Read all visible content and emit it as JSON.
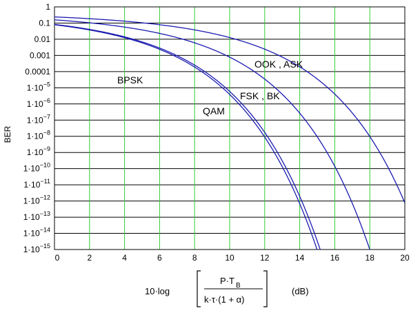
{
  "chart_data": {
    "type": "line",
    "title": "",
    "ylabel": "BER",
    "xlabel_formula": {
      "prefix": "10·log",
      "numerator_main": "P·T",
      "numerator_sub": "B",
      "denominator": "k·τ·(1 + α)",
      "unit": "(dB)"
    },
    "xlim": [
      0,
      20
    ],
    "ylim_log10": [
      -15,
      0
    ],
    "y_scale": "log",
    "grid": true,
    "x_ticks": [
      "0",
      "2",
      "4",
      "6",
      "8",
      "10",
      "12",
      "14",
      "16",
      "18",
      "20"
    ],
    "y_ticks": [
      {
        "base": "1",
        "exp": ""
      },
      {
        "base": "0.1",
        "exp": ""
      },
      {
        "base": "0.01",
        "exp": ""
      },
      {
        "base": "0.001",
        "exp": ""
      },
      {
        "base": "0.0001",
        "exp": ""
      },
      {
        "base": "1·10",
        "exp": "−5"
      },
      {
        "base": "1·10",
        "exp": "−6"
      },
      {
        "base": "1·10",
        "exp": "−7"
      },
      {
        "base": "1·10",
        "exp": "−8"
      },
      {
        "base": "1·10",
        "exp": "−9"
      },
      {
        "base": "1·10",
        "exp": "−10"
      },
      {
        "base": "1·10",
        "exp": "−11"
      },
      {
        "base": "1·10",
        "exp": "−12"
      },
      {
        "base": "1·10",
        "exp": "−13"
      },
      {
        "base": "1·10",
        "exp": "−14"
      },
      {
        "base": "1·10",
        "exp": "−15"
      }
    ],
    "series": [
      {
        "name": "BPSK",
        "snr_offset_db": 0
      },
      {
        "name": "QAM",
        "snr_offset_db": 0.18
      },
      {
        "name": "FSK , BK",
        "snr_offset_db": 3.01
      },
      {
        "name": "OOK , ASK",
        "snr_offset_db": 6.02
      }
    ],
    "colors": {
      "curve": "#1a1ab0",
      "vertical_grid": "#33cc33",
      "horizontal_grid": "#000000",
      "axis": "#000000"
    }
  }
}
